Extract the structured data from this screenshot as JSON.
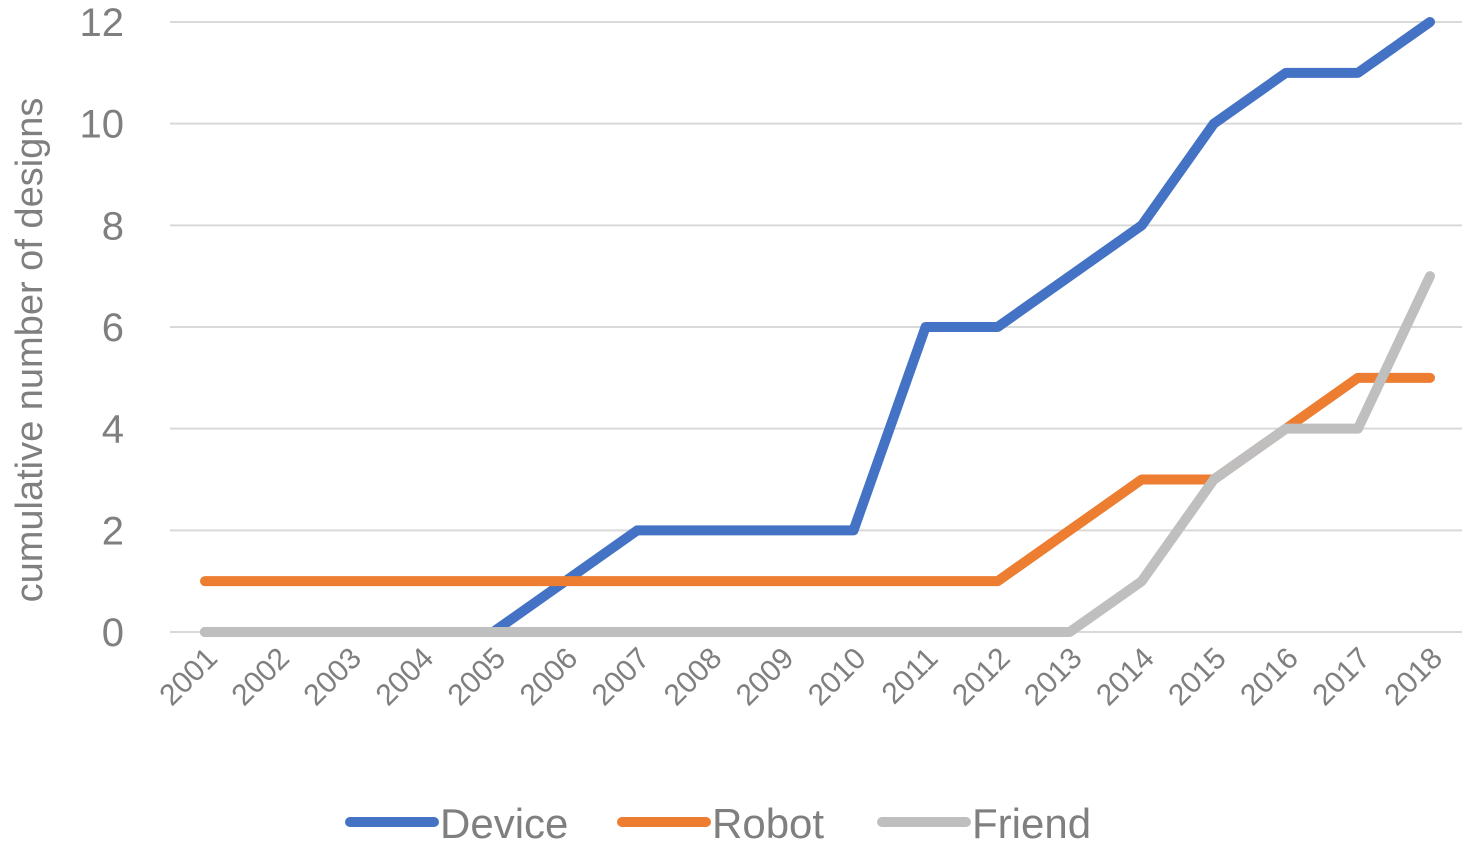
{
  "chart_data": {
    "type": "line",
    "title": "",
    "xlabel": "",
    "ylabel": "cumulative number of designs",
    "ylim": [
      0,
      12
    ],
    "yticks": [
      "0",
      "2",
      "4",
      "6",
      "8",
      "10",
      "12"
    ],
    "grid": true,
    "legend_position": "bottom",
    "categories": [
      "2001",
      "2002",
      "2003",
      "2004",
      "2005",
      "2006",
      "2007",
      "2008",
      "2009",
      "2010",
      "2011",
      "2012",
      "2013",
      "2014",
      "2015",
      "2016",
      "2017",
      "2018"
    ],
    "series": [
      {
        "name": "Device",
        "color": "#4472C4",
        "values": [
          0,
          0,
          0,
          0,
          0,
          1,
          2,
          2,
          2,
          2,
          6,
          6,
          7,
          8,
          10,
          11,
          11,
          12
        ]
      },
      {
        "name": "Robot",
        "color": "#ED7D31",
        "values": [
          1,
          1,
          1,
          1,
          1,
          1,
          1,
          1,
          1,
          1,
          1,
          1,
          2,
          3,
          3,
          4,
          5,
          5
        ]
      },
      {
        "name": "Friend",
        "color": "#BFBFBF",
        "values": [
          0,
          0,
          0,
          0,
          0,
          0,
          0,
          0,
          0,
          0,
          0,
          0,
          0,
          1,
          3,
          4,
          4,
          7
        ]
      }
    ]
  }
}
